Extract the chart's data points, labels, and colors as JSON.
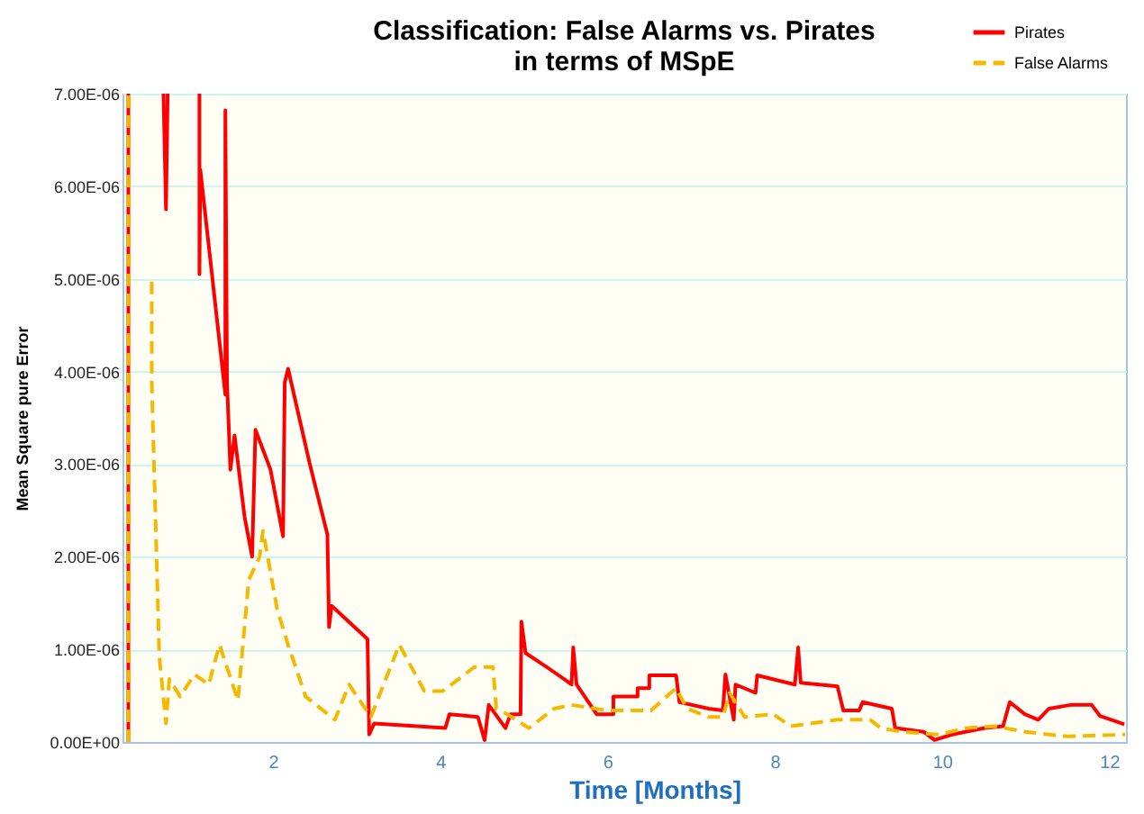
{
  "chart_data": {
    "type": "line",
    "title": [
      "Classification: False Alarms vs. Pirates",
      "in terms of MSpE"
    ],
    "xlabel": "Time [Months]",
    "ylabel": "Mean Square pure Error",
    "xlim": [
      0.2,
      12.2
    ],
    "xticks": [
      2,
      4,
      6,
      8,
      10,
      12
    ],
    "ylim": [
      0,
      7e-06
    ],
    "yticks": [
      {
        "value": 0,
        "label": "0.00E+00"
      },
      {
        "value": 1e-06,
        "label": "1.00E-06"
      },
      {
        "value": 2e-06,
        "label": "2.00E-06"
      },
      {
        "value": 3e-06,
        "label": "3.00E-06"
      },
      {
        "value": 4e-06,
        "label": "4.00E-06"
      },
      {
        "value": 5e-06,
        "label": "5.00E-06"
      },
      {
        "value": 6e-06,
        "label": "6.00E-06"
      },
      {
        "value": 7e-06,
        "label": "7.00E-06"
      }
    ],
    "grid": "y",
    "legend": "top right",
    "marker": "none",
    "series": [
      {
        "name": "Pirates",
        "color": "#ff0000",
        "line_style": "solid",
        "x": [
          0.27,
          0.27,
          0.5,
          0.69,
          0.72,
          0.74,
          0.9,
          1.12,
          1.12,
          1.13,
          1.43,
          1.43,
          1.45,
          1.49,
          1.54,
          1.66,
          1.75,
          1.79,
          1.97,
          2.12,
          2.14,
          2.18,
          2.44,
          2.65,
          2.67,
          2.7,
          3.13,
          3.15,
          3.21,
          4.06,
          4.11,
          4.45,
          4.53,
          4.58,
          4.78,
          4.84,
          4.96,
          4.97,
          5.02,
          5.27,
          5.48,
          5.57,
          5.59,
          5.63,
          5.87,
          6.07,
          6.07,
          6.36,
          6.36,
          6.5,
          6.5,
          6.82,
          6.86,
          7.21,
          7.38,
          7.41,
          7.51,
          7.53,
          7.77,
          7.79,
          8.24,
          8.28,
          8.31,
          8.75,
          8.82,
          9.01,
          9.05,
          9.4,
          9.44,
          9.78,
          9.91,
          10.12,
          10.51,
          10.73,
          10.81,
          10.99,
          11.15,
          11.28,
          11.54,
          11.79,
          11.89,
          12.18
        ],
        "values": [
          0,
          7e-06,
          null,
          7e-06,
          5.75e-06,
          7e-06,
          null,
          7e-06,
          5.05e-06,
          6.18e-06,
          3.75e-06,
          6.82e-06,
          3.88e-06,
          2.94e-06,
          3.31e-06,
          2.43e-06,
          2e-06,
          3.37e-06,
          2.94e-06,
          2.22e-06,
          3.88e-06,
          4.03e-06,
          3e-06,
          2.24e-06,
          1.24e-06,
          1.47e-06,
          1.11e-06,
          8e-08,
          2e-07,
          1.5e-07,
          3e-07,
          2.7e-07,
          2e-08,
          4e-07,
          1.5e-07,
          3e-07,
          3e-07,
          1.3e-06,
          9.6e-07,
          8.1e-07,
          6.8e-07,
          6.2e-07,
          1.02e-06,
          6.2e-07,
          3e-07,
          3e-07,
          4.9e-07,
          4.9e-07,
          5.8e-07,
          5.8e-07,
          7.2e-07,
          7.2e-07,
          4.3e-07,
          3.6e-07,
          3.4e-07,
          7.3e-07,
          2.4e-07,
          6.2e-07,
          5.3e-07,
          7.2e-07,
          6.2e-07,
          1.02e-06,
          6.4e-07,
          6e-07,
          3.4e-07,
          3.4e-07,
          4.3e-07,
          3.6e-07,
          1.5e-07,
          1.1e-07,
          2e-08,
          8e-08,
          1.5e-07,
          1.7e-07,
          4.3e-07,
          3e-07,
          2.4e-07,
          3.6e-07,
          4e-07,
          4e-07,
          2.8e-07,
          1.9e-07
        ]
      },
      {
        "name": "False Alarms",
        "color": "#f5b800",
        "line_style": "dashed",
        "x": [
          0.27,
          0.27,
          0.4,
          0.55,
          0.55,
          0.64,
          0.72,
          0.76,
          0.89,
          1.06,
          1.23,
          1.36,
          1.58,
          1.71,
          1.84,
          1.88,
          2.05,
          2.18,
          2.39,
          2.74,
          2.91,
          3.17,
          3.51,
          3.81,
          4.03,
          4.41,
          4.63,
          4.67,
          4.8,
          5.06,
          5.36,
          5.57,
          6.0,
          6.52,
          6.82,
          6.95,
          7.21,
          7.38,
          7.46,
          7.64,
          7.98,
          8.19,
          8.75,
          9.14,
          9.27,
          9.52,
          9.96,
          10.3,
          10.64,
          10.99,
          11.5,
          12.19
        ],
        "values": [
          0,
          7e-06,
          null,
          4.97e-06,
          3.88e-06,
          9.2e-07,
          2e-07,
          6.8e-07,
          4.9e-07,
          7.3e-07,
          6.2e-07,
          1.05e-06,
          4.5e-07,
          1.75e-06,
          2e-06,
          2.28e-06,
          1.43e-06,
          1.05e-06,
          4.9e-07,
          2.4e-07,
          6.2e-07,
          2.7e-07,
          1.05e-06,
          5.5e-07,
          5.5e-07,
          8.1e-07,
          8.1e-07,
          3.6e-07,
          3e-07,
          1.5e-07,
          3.6e-07,
          4e-07,
          3.4e-07,
          3.4e-07,
          5.8e-07,
          3.6e-07,
          2.7e-07,
          2.7e-07,
          5.3e-07,
          2.7e-07,
          3e-07,
          1.7e-07,
          2.4e-07,
          2.4e-07,
          1.5e-07,
          1.1e-07,
          8e-08,
          1.5e-07,
          1.7e-07,
          1.1e-07,
          6e-08,
          8e-08
        ]
      }
    ]
  }
}
